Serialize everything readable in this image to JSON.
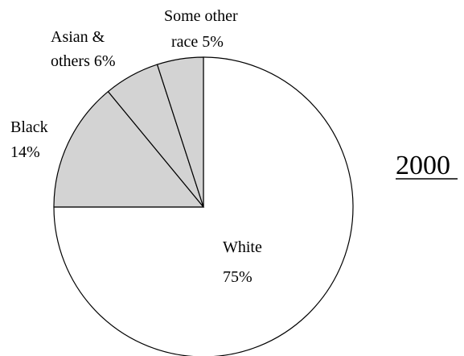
{
  "chart_data": {
    "type": "pie",
    "title": "2000",
    "slices": [
      {
        "label": "White",
        "pct_text": "75%",
        "value": 75,
        "fill": "#ffffff"
      },
      {
        "label": "Black",
        "pct_text": "14%",
        "value": 14,
        "fill": "#d3d3d3"
      },
      {
        "label": "Asian &",
        "label_line2": "others",
        "pct_text": "6%",
        "value": 6,
        "fill": "#d3d3d3"
      },
      {
        "label": "Some other",
        "label_line2": "race",
        "pct_text": "5%",
        "value": 5,
        "fill": "#d3d3d3"
      }
    ],
    "edge_color": "#000000",
    "start": "12 o'clock",
    "direction": "clockwise"
  }
}
